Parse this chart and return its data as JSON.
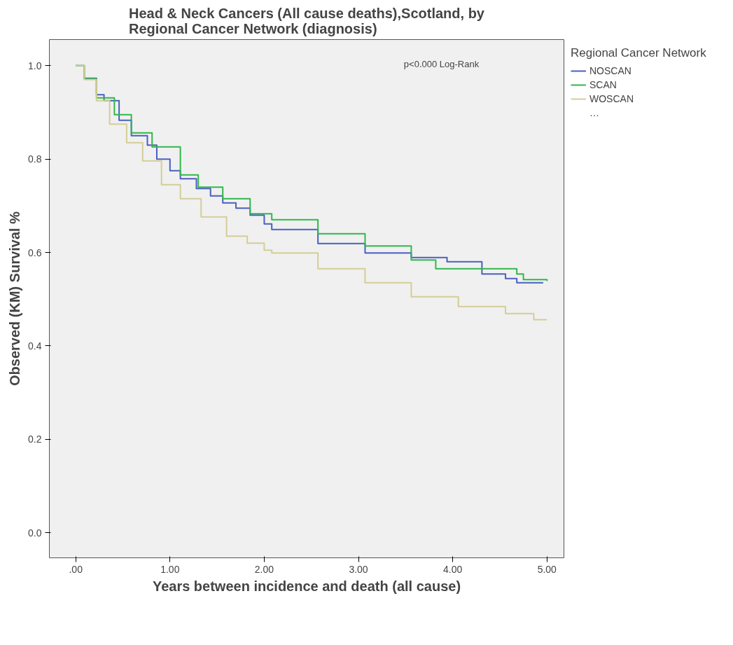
{
  "chart_data": {
    "type": "step",
    "title": "Head & Neck Cancers (All cause deaths),Scotland, by\nRegional Cancer Network (diagnosis)",
    "xlabel": "Years between incidence and death (all cause)",
    "ylabel": "Observed (KM) Survival %",
    "legend_title": "Regional Cancer Network",
    "legend": "right",
    "grid": false,
    "annotations": [
      "p<0.000 Log-Rank",
      "…"
    ],
    "xlim": [
      -0.28,
      5.18
    ],
    "ylim": [
      -0.054,
      1.056
    ],
    "xticks": [
      {
        "value": 0,
        "label": ".00"
      },
      {
        "value": 1,
        "label": "1.00"
      },
      {
        "value": 2,
        "label": "2.00"
      },
      {
        "value": 3,
        "label": "3.00"
      },
      {
        "value": 4,
        "label": "4.00"
      },
      {
        "value": 5,
        "label": "5.00"
      }
    ],
    "yticks": [
      {
        "value": 0,
        "label": "0.0"
      },
      {
        "value": 0.2,
        "label": "0.2"
      },
      {
        "value": 0.4,
        "label": "0.4"
      },
      {
        "value": 0.6,
        "label": "0.6"
      },
      {
        "value": 0.8,
        "label": "0.8"
      },
      {
        "value": 1,
        "label": "1.0"
      }
    ],
    "series": [
      {
        "name": "NOSCAN",
        "color": "#4a5fbf",
        "x": [
          0,
          0.09,
          0.22,
          0.3,
          0.46,
          0.59,
          0.76,
          0.86,
          1.0,
          1.11,
          1.28,
          1.43,
          1.56,
          1.7,
          1.85,
          2.0,
          2.08,
          2.57,
          3.07,
          3.56,
          3.94,
          4.31,
          4.56,
          4.68,
          4.96
        ],
        "values": [
          1.0,
          0.973,
          0.938,
          0.925,
          0.883,
          0.85,
          0.83,
          0.8,
          0.775,
          0.758,
          0.737,
          0.721,
          0.706,
          0.695,
          0.68,
          0.661,
          0.649,
          0.619,
          0.599,
          0.589,
          0.58,
          0.554,
          0.544,
          0.535,
          0.535
        ]
      },
      {
        "name": "SCAN",
        "color": "#2fb84a",
        "x": [
          0,
          0.09,
          0.22,
          0.41,
          0.59,
          0.81,
          1.11,
          1.3,
          1.56,
          1.85,
          2.08,
          2.57,
          3.07,
          3.56,
          3.82,
          4.31,
          4.68,
          4.75,
          5.0
        ],
        "values": [
          1.0,
          0.972,
          0.931,
          0.895,
          0.856,
          0.826,
          0.766,
          0.74,
          0.715,
          0.683,
          0.67,
          0.64,
          0.614,
          0.584,
          0.565,
          0.565,
          0.554,
          0.542,
          0.539
        ]
      },
      {
        "name": "WOSCAN",
        "color": "#d4cd96",
        "x": [
          0,
          0.09,
          0.22,
          0.36,
          0.54,
          0.71,
          0.91,
          1.11,
          1.33,
          1.6,
          1.82,
          2.0,
          2.08,
          2.57,
          3.07,
          3.56,
          4.06,
          4.56,
          4.86,
          5.0
        ],
        "values": [
          1.0,
          0.97,
          0.925,
          0.875,
          0.835,
          0.796,
          0.745,
          0.715,
          0.676,
          0.635,
          0.62,
          0.605,
          0.599,
          0.565,
          0.535,
          0.505,
          0.484,
          0.469,
          0.456,
          0.456
        ]
      }
    ]
  }
}
